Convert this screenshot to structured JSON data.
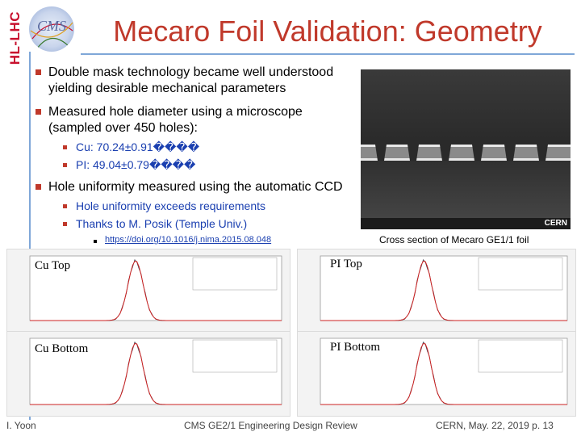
{
  "logo": {
    "side_text": "HL-LHC",
    "cms_text": "CMS"
  },
  "title": "Mecaro Foil Validation: Geometry",
  "bullets": [
    {
      "text": "Double mask technology became well understood yielding desirable mechanical parameters"
    },
    {
      "text": "Measured hole diameter using a microscope (sampled over 450 holes):"
    },
    {
      "text": "Hole uniformity measured using the automatic CCD"
    }
  ],
  "diameter": [
    {
      "text": "Cu: 70.24±0.91����"
    },
    {
      "text": "PI: 49.04±0.79����"
    }
  ],
  "uniformity": [
    {
      "text": "Hole uniformity exceeds requirements"
    },
    {
      "text": "Thanks to M. Posik (Temple Univ.)"
    }
  ],
  "reference_link": "https://doi.org/10.1016/j.nima.2015.08.048",
  "sem_caption": "Cross section of Mecaro GE1/1 foil",
  "sem_brand": "CERN",
  "plots": [
    {
      "label": "Cu Top"
    },
    {
      "label": "PI Top"
    },
    {
      "label": "Cu Bottom"
    },
    {
      "label": "PI Bottom"
    }
  ],
  "footer": {
    "author": "I. Yoon",
    "event": "CMS GE2/1 Engineering Design Review",
    "date_page": "CERN, May. 22, 2019 p. 13"
  },
  "colors": {
    "title": "#c0392b",
    "accent": "#7fa7d8",
    "sub_text": "#1a3fb0",
    "hist_curve": "#cc2222"
  }
}
